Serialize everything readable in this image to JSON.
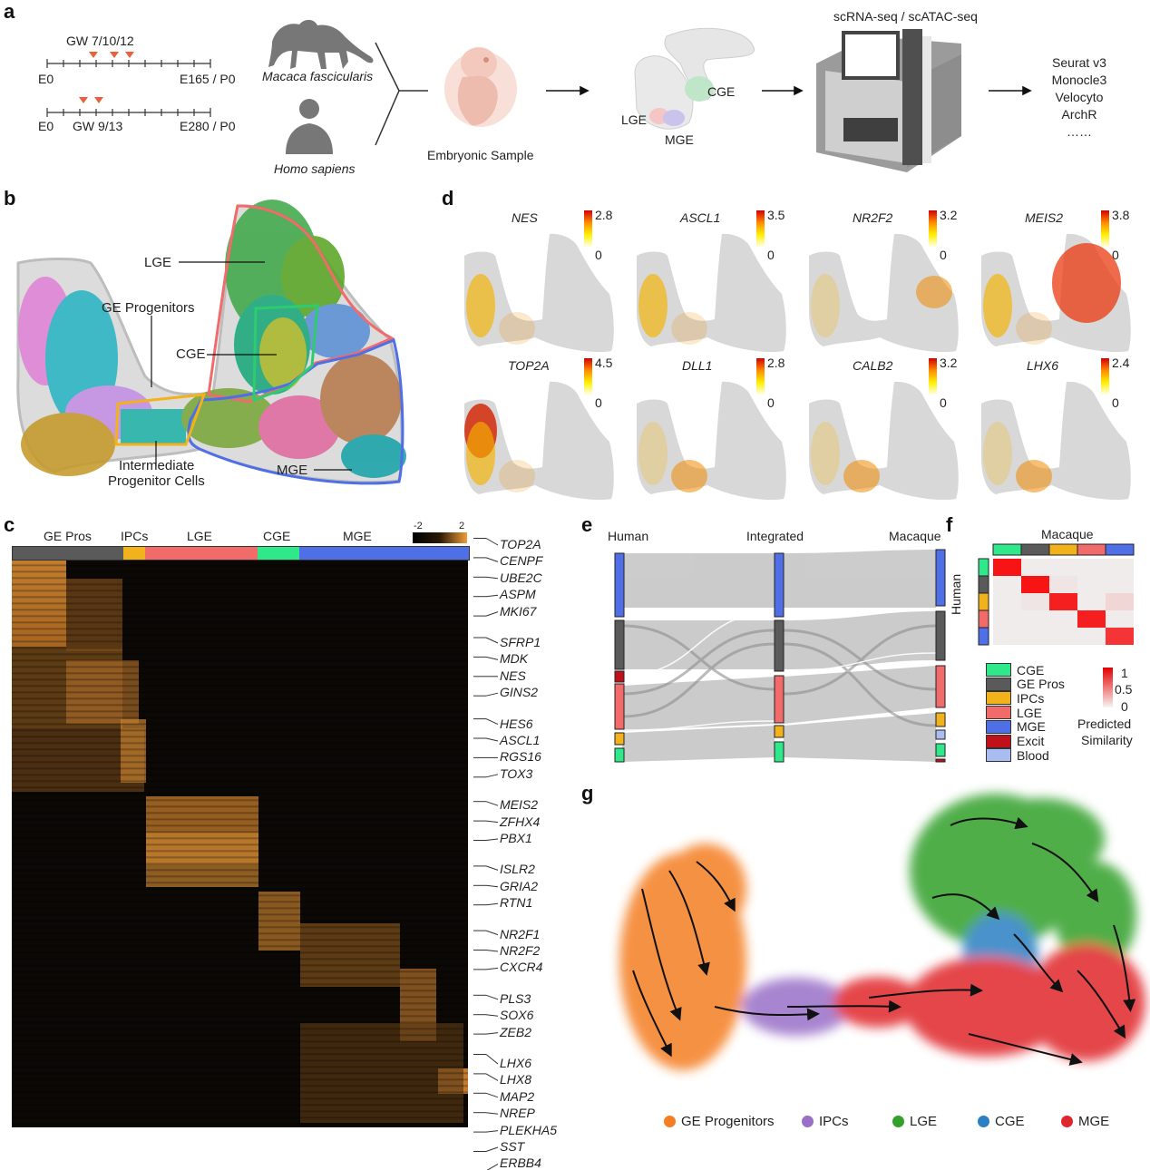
{
  "panels": {
    "a": "a",
    "b": "b",
    "c": "c",
    "d": "d",
    "e": "e",
    "f": "f",
    "g": "g"
  },
  "panel_a": {
    "macaque_gw": "GW 7/10/12",
    "macaque_start": "E0",
    "macaque_end": "E165 / P0",
    "human_start": "E0",
    "human_gw": "GW 9/13",
    "human_end": "E280 / P0",
    "macaque_name": "Macaca fascicularis",
    "human_name": "Homo sapiens",
    "embryo_label": "Embryonic Sample",
    "region_lge": "LGE",
    "region_mge": "MGE",
    "region_cge": "CGE",
    "seq_label": "scRNA-seq / scATAC-seq",
    "tools": [
      "Seurat v3",
      "Monocle3",
      "Velocyto",
      "ArchR",
      "……"
    ],
    "colors": {
      "marker": "#e8603c",
      "cge": "#bfe6c8",
      "lge": "#f5c6c6",
      "mge": "#c9c3ee"
    }
  },
  "panel_b": {
    "lge": "LGE",
    "ge_progenitors": "GE Progenitors",
    "cge": "CGE",
    "ipc_line1": "Intermediate",
    "ipc_line2": "Progenitor Cells",
    "mge": "MGE",
    "colors": {
      "lge_outline": "#f26b6b",
      "mge_outline": "#4f6fe6",
      "cge_outline": "#2ecc71",
      "ipc_outline": "#f2b21b",
      "outer": "#bdbdbd"
    }
  },
  "panel_c": {
    "groups": [
      "GE Pros",
      "IPCs",
      "LGE",
      "CGE",
      "MGE"
    ],
    "group_colors": [
      "#5a5a5a",
      "#f2b21b",
      "#f26b6b",
      "#2ee88a",
      "#4f6fe6"
    ],
    "scale_min": "-2",
    "scale_max": "2",
    "genes": [
      "TOP2A",
      "CENPF",
      "UBE2C",
      "ASPM",
      "MKI67",
      "SFRP1",
      "MDK",
      "NES",
      "GINS2",
      "HES6",
      "ASCL1",
      "RGS16",
      "TOX3",
      "MEIS2",
      "ZFHX4",
      "PBX1",
      "ISLR2",
      "GRIA2",
      "RTN1",
      "NR2F1",
      "NR2F2",
      "CXCR4",
      "PLS3",
      "SOX6",
      "ZEB2",
      "LHX6",
      "LHX8",
      "MAP2",
      "NREP",
      "PLEKHA5",
      "SST",
      "ERBB4"
    ]
  },
  "panel_d": {
    "genes": [
      {
        "name": "NES",
        "max": "2.8",
        "min": "0"
      },
      {
        "name": "ASCL1",
        "max": "3.5",
        "min": "0"
      },
      {
        "name": "NR2F2",
        "max": "3.2",
        "min": "0"
      },
      {
        "name": "MEIS2",
        "max": "3.8",
        "min": "0"
      },
      {
        "name": "TOP2A",
        "max": "4.5",
        "min": "0"
      },
      {
        "name": "DLL1",
        "max": "2.8",
        "min": "0"
      },
      {
        "name": "CALB2",
        "max": "3.2",
        "min": "0"
      },
      {
        "name": "LHX6",
        "max": "2.4",
        "min": "0"
      }
    ]
  },
  "panel_e": {
    "left": "Human",
    "middle": "Integrated",
    "right": "Macaque"
  },
  "panel_f": {
    "top_label": "Macaque",
    "side_label": "Human",
    "legend": [
      {
        "label": "CGE",
        "color": "#2ee88a"
      },
      {
        "label": "GE Pros",
        "color": "#5a5a5a"
      },
      {
        "label": "IPCs",
        "color": "#f2b21b"
      },
      {
        "label": "LGE",
        "color": "#f26b6b"
      },
      {
        "label": "MGE",
        "color": "#4f6fe6"
      },
      {
        "label": "Excit",
        "color": "#c0101a"
      },
      {
        "label": "Blood",
        "color": "#a9bdf2"
      }
    ],
    "scale_max": "1",
    "scale_mid": "0.5",
    "scale_min": "0",
    "scale_title_1": "Predicted",
    "scale_title_2": "Similarity",
    "matrix": [
      [
        1.0,
        0.02,
        0.02,
        0.02,
        0.02
      ],
      [
        0.02,
        1.0,
        0.05,
        0.02,
        0.02
      ],
      [
        0.02,
        0.05,
        0.95,
        0.02,
        0.12
      ],
      [
        0.02,
        0.02,
        0.02,
        0.95,
        0.02
      ],
      [
        0.02,
        0.02,
        0.02,
        0.02,
        0.85
      ]
    ]
  },
  "panel_g": {
    "legend": [
      {
        "label": "GE Progenitors",
        "color": "#f47e21"
      },
      {
        "label": "IPCs",
        "color": "#9a6fc8"
      },
      {
        "label": "LGE",
        "color": "#33a02c"
      },
      {
        "label": "CGE",
        "color": "#2b7fc2"
      },
      {
        "label": "MGE",
        "color": "#e0262c"
      }
    ]
  }
}
